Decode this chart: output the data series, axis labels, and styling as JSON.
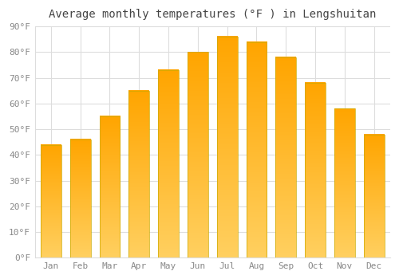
{
  "title": "Average monthly temperatures (°F ) in Lengshuitan",
  "months": [
    "Jan",
    "Feb",
    "Mar",
    "Apr",
    "May",
    "Jun",
    "Jul",
    "Aug",
    "Sep",
    "Oct",
    "Nov",
    "Dec"
  ],
  "values": [
    44,
    46,
    55,
    65,
    73,
    80,
    86,
    84,
    78,
    68,
    58,
    48
  ],
  "bar_color_top": "#FFA500",
  "bar_color_bottom": "#FFD060",
  "ylim": [
    0,
    90
  ],
  "yticks": [
    0,
    10,
    20,
    30,
    40,
    50,
    60,
    70,
    80,
    90
  ],
  "ylabel_suffix": "°F",
  "background_color": "#ffffff",
  "plot_bg_color": "#ffffff",
  "grid_color": "#dddddd",
  "title_fontsize": 10,
  "tick_fontsize": 8,
  "tick_color": "#888888",
  "bar_width": 0.7
}
